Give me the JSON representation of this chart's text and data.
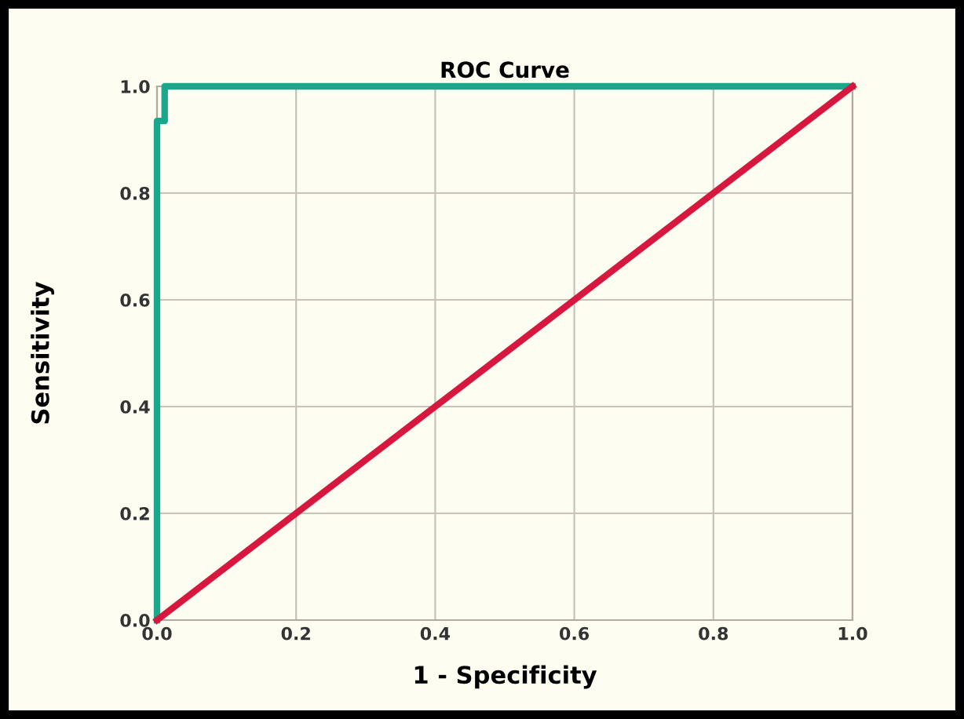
{
  "chart_data": {
    "type": "line",
    "title": "ROC Curve",
    "xlabel": "1 - Specificity",
    "ylabel": "Sensitivity",
    "series": [
      {
        "color": "#19a88c",
        "x": [
          0,
          0,
          0.011,
          0.011,
          1
        ],
        "values": [
          0,
          0.935,
          0.935,
          1,
          1
        ]
      },
      {
        "color": "#d8173f",
        "x": [
          0,
          1
        ],
        "values": [
          0,
          1
        ]
      }
    ],
    "xlim": [
      0,
      1
    ],
    "ylim": [
      0,
      1
    ],
    "xticks": [
      {
        "value": 0,
        "label": "0.0"
      },
      {
        "value": 0.2,
        "label": "0.2"
      },
      {
        "value": 0.4,
        "label": "0.4"
      },
      {
        "value": 0.6,
        "label": "0.6"
      },
      {
        "value": 0.8,
        "label": "0.8"
      },
      {
        "value": 1,
        "label": "1.0"
      }
    ],
    "yticks": [
      {
        "value": 0,
        "label": "0.0"
      },
      {
        "value": 0.2,
        "label": "0.2"
      },
      {
        "value": 0.4,
        "label": "0.4"
      },
      {
        "value": 0.6,
        "label": "0.6"
      },
      {
        "value": 0.8,
        "label": "0.8"
      },
      {
        "value": 1,
        "label": "1.0"
      }
    ],
    "grid": true,
    "line_style": "solid",
    "marker": "none",
    "legend": false
  }
}
